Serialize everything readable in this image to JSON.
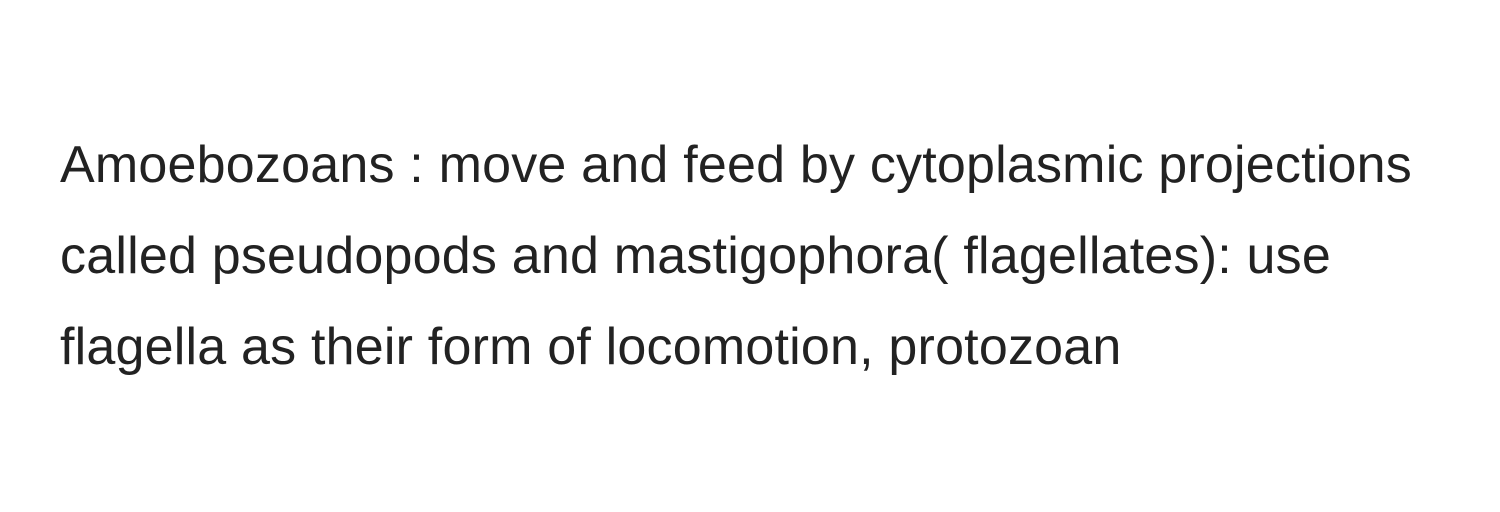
{
  "content": {
    "text": "Amoebozoans : move and feed by cytoplasmic projections called pseudopods and mastigophora( flagellates): use flagella as their form of locomotion, protozoan",
    "text_color": "#222222",
    "background_color": "#ffffff",
    "font_size": 52,
    "line_height": 1.75,
    "font_weight": 400
  }
}
